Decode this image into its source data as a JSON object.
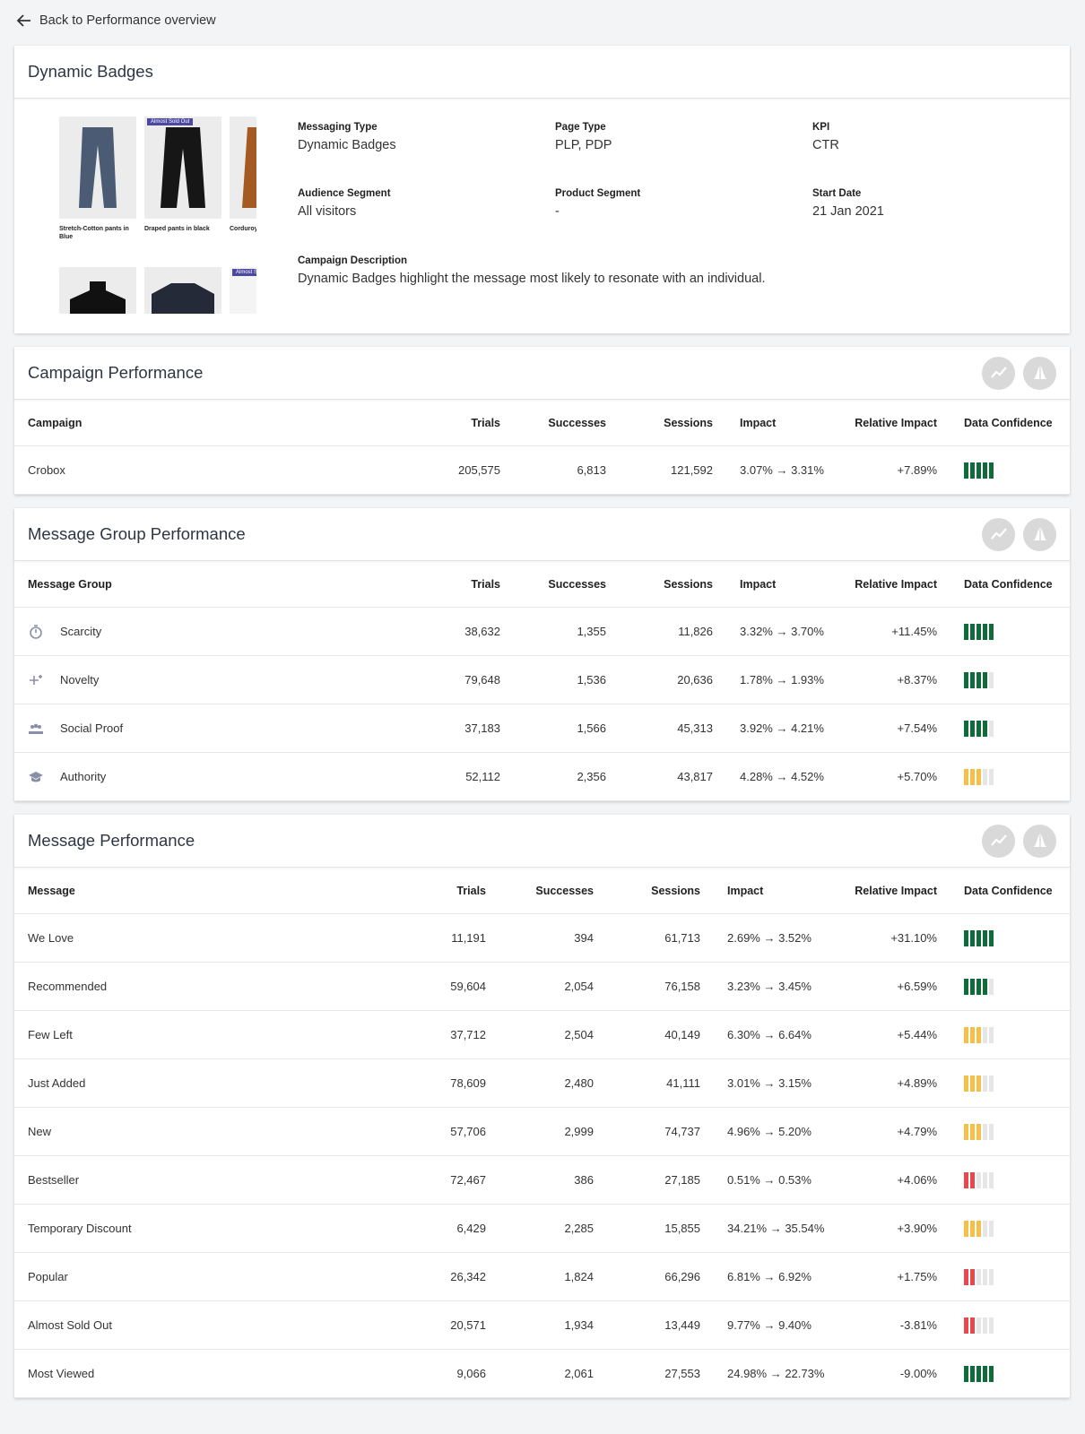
{
  "back_link": "Back to Performance overview",
  "campaign": {
    "title": "Dynamic Badges",
    "products": [
      {
        "name": "Stretch-Cotton pants in Blue"
      },
      {
        "name": "Draped pants in black",
        "badge": "Almost Sold Out"
      },
      {
        "name": "Corduroy pants in"
      },
      {},
      {},
      {
        "badge": "Almost Sold Out"
      }
    ],
    "fields": [
      {
        "label": "Messaging Type",
        "value": "Dynamic Badges"
      },
      {
        "label": "Page Type",
        "value": "PLP, PDP"
      },
      {
        "label": "KPI",
        "value": "CTR"
      },
      {
        "label": "Audience Segment",
        "value": "All visitors"
      },
      {
        "label": "Product Segment",
        "value": "-"
      },
      {
        "label": "Start Date",
        "value": "21 Jan 2021"
      }
    ],
    "description_label": "Campaign Description",
    "description": "Dynamic Badges highlight the message most likely to resonate with an individual."
  },
  "tables": [
    {
      "title": "Campaign Performance",
      "columns": [
        "Campaign",
        "Trials",
        "Successes",
        "Sessions",
        "Impact",
        "Relative Impact",
        "Data Confidence"
      ],
      "rows": [
        {
          "cells": [
            "Crobox",
            "205,575",
            "6,813",
            "121,592",
            "3.07% → 3.31%",
            "+7.89%"
          ],
          "confidence": 5,
          "confidence_color": "#0f6b3a"
        }
      ]
    },
    {
      "title": "Message Group Performance",
      "columns": [
        "Message Group",
        "Trials",
        "Successes",
        "Sessions",
        "Impact",
        "Relative Impact",
        "Data Confidence"
      ],
      "rows": [
        {
          "cells": [
            "Scarcity",
            "38,632",
            "1,355",
            "11,826",
            "3.32% → 3.70%",
            "+11.45%"
          ],
          "confidence": 5,
          "confidence_color": "#0f6b3a"
        },
        {
          "cells": [
            "Novelty",
            "79,648",
            "1,536",
            "20,636",
            "1.78% → 1.93%",
            "+8.37%"
          ],
          "confidence": 4,
          "confidence_color": "#0f6b3a"
        },
        {
          "cells": [
            "Social Proof",
            "37,183",
            "1,566",
            "45,313",
            "3.92% → 4.21%",
            "+7.54%"
          ],
          "confidence": 4,
          "confidence_color": "#0f6b3a"
        },
        {
          "cells": [
            "Authority",
            "52,112",
            "2,356",
            "43,817",
            "4.28% → 4.52%",
            "+5.70%"
          ],
          "confidence": 3,
          "confidence_color": "#f5c04a"
        }
      ]
    },
    {
      "title": "Message Performance",
      "columns": [
        "Message",
        "Trials",
        "Successes",
        "Sessions",
        "Impact",
        "Relative Impact",
        "Data Confidence"
      ],
      "rows": [
        {
          "cells": [
            "We Love",
            "11,191",
            "394",
            "61,713",
            "2.69% → 3.52%",
            "+31.10%"
          ],
          "confidence": 5,
          "confidence_color": "#0f6b3a"
        },
        {
          "cells": [
            "Recommended",
            "59,604",
            "2,054",
            "76,158",
            "3.23% → 3.45%",
            "+6.59%"
          ],
          "confidence": 4,
          "confidence_color": "#0f6b3a"
        },
        {
          "cells": [
            "Few Left",
            "37,712",
            "2,504",
            "40,149",
            "6.30% → 6.64%",
            "+5.44%"
          ],
          "confidence": 3,
          "confidence_color": "#f5c04a"
        },
        {
          "cells": [
            "Just Added",
            "78,609",
            "2,480",
            "41,111",
            "3.01% → 3.15%",
            "+4.89%"
          ],
          "confidence": 3,
          "confidence_color": "#f5c04a"
        },
        {
          "cells": [
            "New",
            "57,706",
            "2,999",
            "74,737",
            "4.96% → 5.20%",
            "+4.79%"
          ],
          "confidence": 3,
          "confidence_color": "#f5c04a"
        },
        {
          "cells": [
            "Bestseller",
            "72,467",
            "386",
            "27,185",
            "0.51% → 0.53%",
            "+4.06%"
          ],
          "confidence": 2,
          "confidence_color": "#e5484d"
        },
        {
          "cells": [
            "Temporary Discount",
            "6,429",
            "2,285",
            "15,855",
            "34.21% → 35.54%",
            "+3.90%"
          ],
          "confidence": 3,
          "confidence_color": "#f5c04a"
        },
        {
          "cells": [
            "Popular",
            "26,342",
            "1,824",
            "66,296",
            "6.81% → 6.92%",
            "+1.75%"
          ],
          "confidence": 2,
          "confidence_color": "#e5484d"
        },
        {
          "cells": [
            "Almost Sold Out",
            "20,571",
            "1,934",
            "13,449",
            "9.77% → 9.40%",
            "-3.81%"
          ],
          "confidence": 2,
          "confidence_color": "#e5484d"
        },
        {
          "cells": [
            "Most Viewed",
            "9,066",
            "2,061",
            "27,553",
            "24.98% → 22.73%",
            "-9.00%"
          ],
          "confidence": 5,
          "confidence_color": "#0f6b3a"
        }
      ]
    }
  ]
}
